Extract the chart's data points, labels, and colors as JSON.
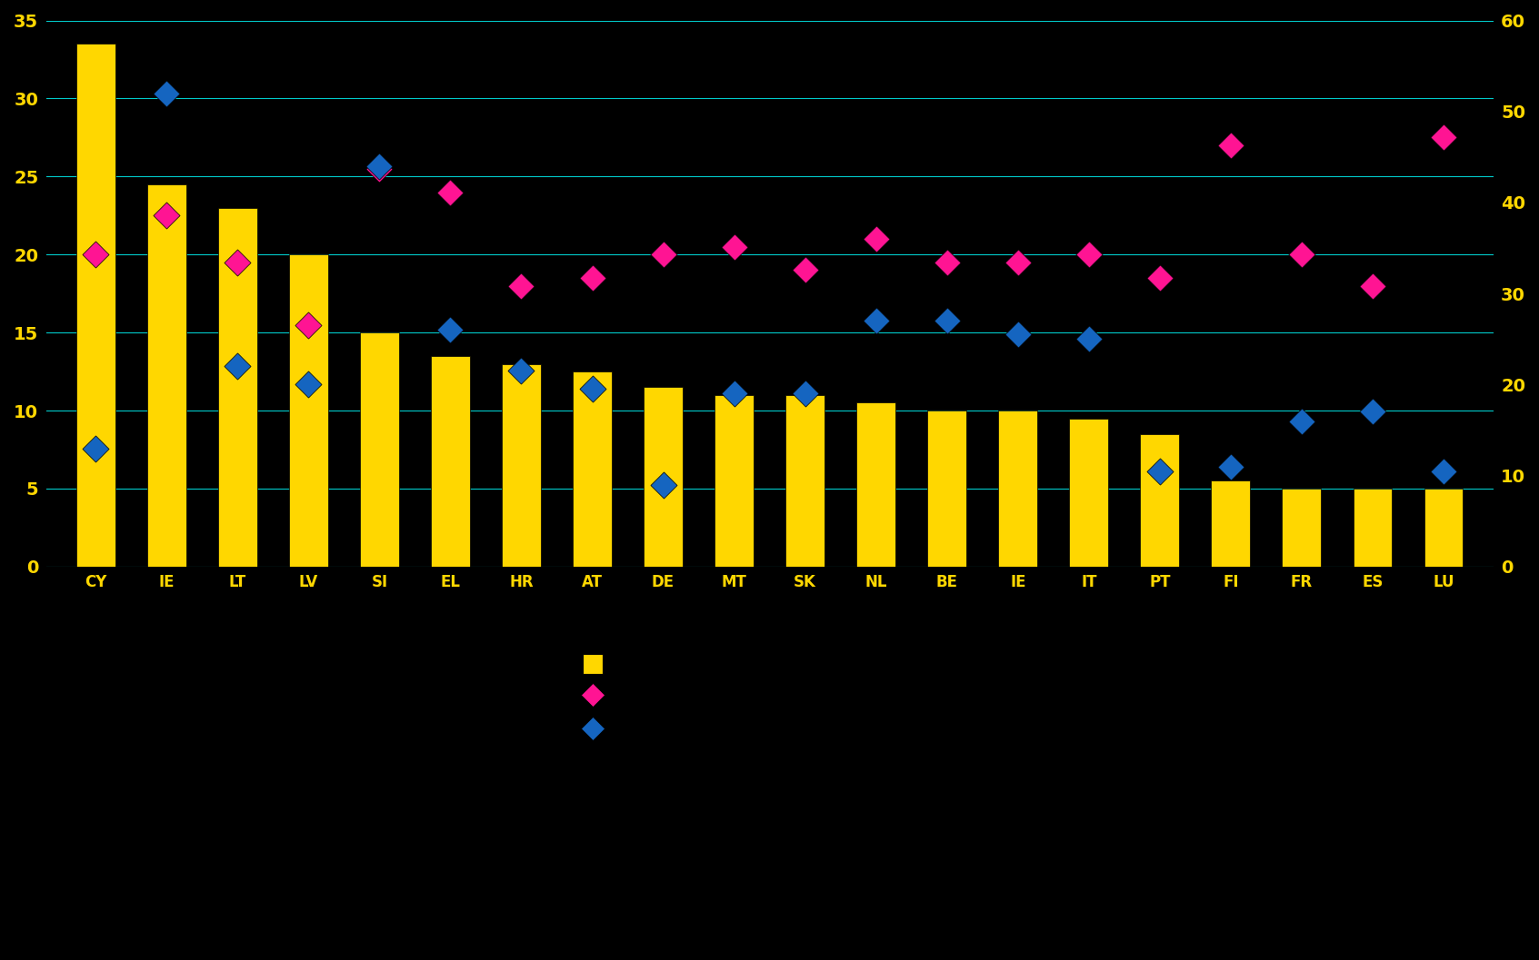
{
  "countries": [
    "CY",
    "IE",
    "LT",
    "LV",
    "SI",
    "EL",
    "HR",
    "AT",
    "DE",
    "MT",
    "SK",
    "NL",
    "BE",
    "IE",
    "IT",
    "PT",
    "FI",
    "FR",
    "ES",
    "LU"
  ],
  "cre_exposures": [
    33.5,
    24.5,
    23.0,
    20.0,
    15.0,
    13.5,
    13.0,
    12.5,
    11.5,
    11.0,
    11.0,
    10.5,
    10.0,
    10.0,
    9.5,
    8.5,
    5.5,
    5.0,
    5.0,
    5.0
  ],
  "tier1_ratio": [
    20.0,
    22.5,
    19.5,
    15.5,
    25.5,
    24.0,
    18.0,
    18.5,
    20.0,
    20.5,
    19.0,
    21.0,
    19.5,
    19.5,
    20.0,
    18.5,
    27.0,
    20.0,
    18.0,
    27.5
  ],
  "cre_npls_right": [
    13.0,
    52.0,
    22.0,
    20.0,
    44.0,
    26.0,
    21.5,
    19.5,
    9.0,
    19.0,
    19.0,
    27.0,
    27.0,
    25.5,
    25.0,
    10.5,
    11.0,
    16.0,
    17.0,
    10.5
  ],
  "bar_color": "#FFD700",
  "bar_edgecolor": "#000000",
  "tier1_color": "#FF1493",
  "npls_color": "#1565C0",
  "bg_color": "#000000",
  "grid_color": "#00FFFF",
  "tick_color": "#FFD700",
  "left_ylim": [
    0,
    35
  ],
  "right_ylim": [
    0,
    60
  ],
  "left_yticks": [
    0,
    5,
    10,
    15,
    20,
    25,
    30,
    35
  ],
  "right_yticks": [
    0,
    10,
    20,
    30,
    40,
    50,
    60
  ],
  "figure_width": 16.93,
  "figure_height": 10.57,
  "dpi": 100
}
